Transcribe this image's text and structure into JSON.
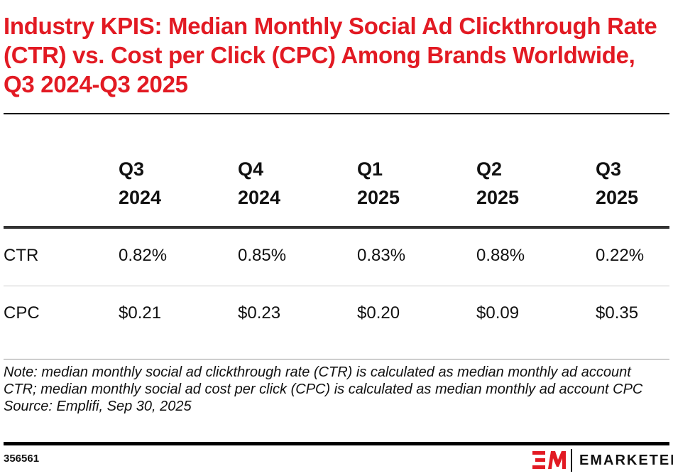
{
  "chart_data": {
    "type": "table",
    "title": "Industry KPIS: Median Monthly Social Ad Clickthrough Rate (CTR) vs. Cost per Click (CPC) Among Brands Worldwide, Q3 2024-Q3 2025",
    "columns": [
      [
        "Q3",
        "2024"
      ],
      [
        "Q4",
        "2024"
      ],
      [
        "Q1",
        "2025"
      ],
      [
        "Q2",
        "2025"
      ],
      [
        "Q3",
        "2025"
      ]
    ],
    "rows": [
      {
        "label": "CTR",
        "values": [
          "0.82%",
          "0.85%",
          "0.83%",
          "0.88%",
          "0.22%"
        ]
      },
      {
        "label": "CPC",
        "values": [
          "$0.21",
          "$0.23",
          "$0.20",
          "$0.09",
          "$0.35"
        ]
      }
    ]
  },
  "note": "Note: median monthly social ad clickthrough rate (CTR) is calculated as median monthly ad account CTR; median monthly social ad cost per click (CPC) is calculated as median monthly ad account CPC",
  "source": "Source: Emplifi, Sep 30, 2025",
  "chart_id": "356561",
  "brand": "EMARKETER",
  "colors": {
    "title": "#e21a23",
    "logo": "#e21a23"
  }
}
